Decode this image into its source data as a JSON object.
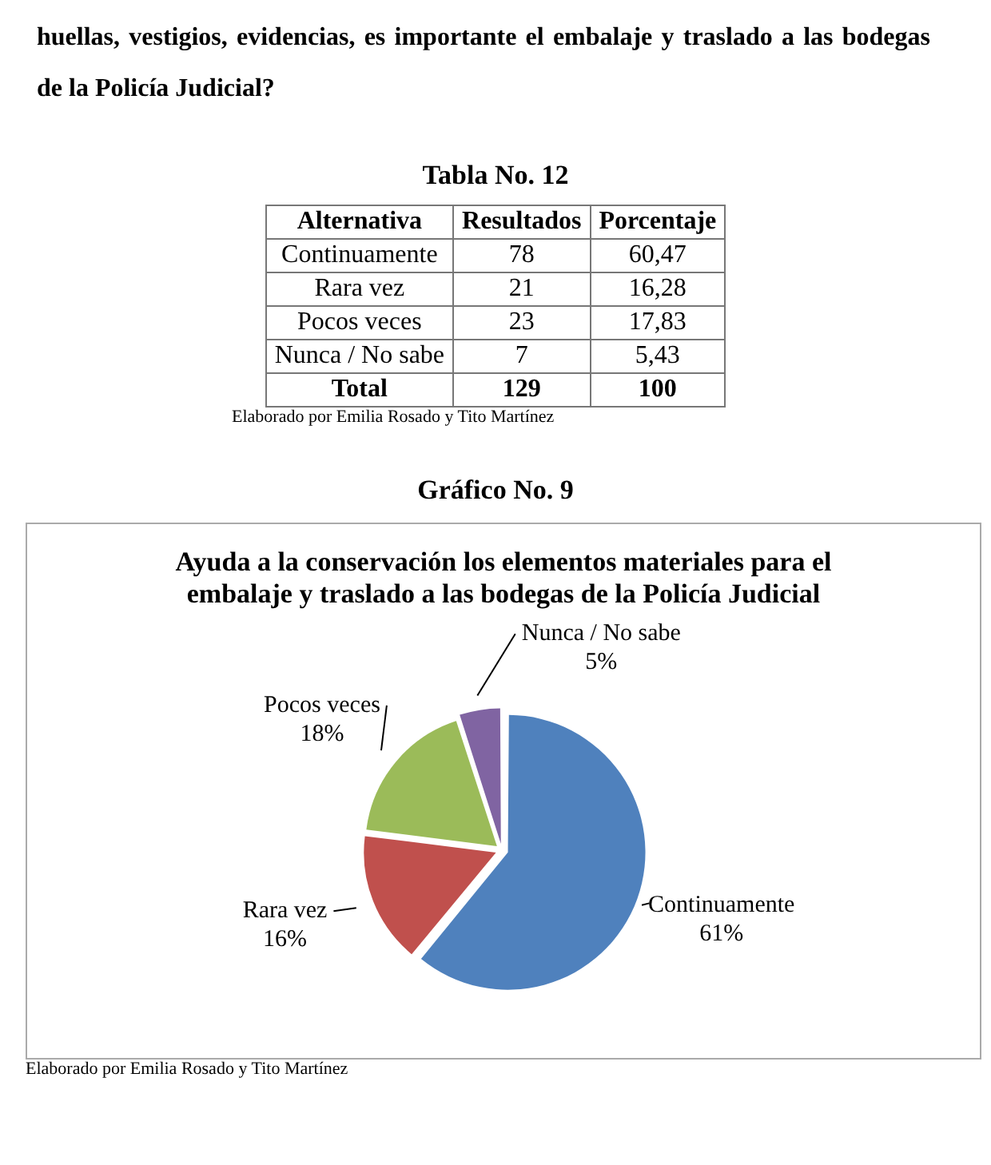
{
  "chart_data": [
    {
      "type": "other",
      "title": "Tabla No. 12",
      "categories": [
        "Alternativa",
        "Resultados",
        "Porcentaje"
      ],
      "cell_labels": [
        [
          "Continuamente",
          "78",
          "60,47"
        ],
        [
          "Rara vez",
          "21",
          "16,28"
        ],
        [
          "Pocos veces",
          "23",
          "17,83"
        ],
        [
          "Nunca / No sabe",
          "7",
          "5,43"
        ],
        [
          "Total",
          "129",
          "100"
        ]
      ],
      "annotations": [
        "huellas, vestigios, evidencias, es importante el embalaje y traslado a las bodegas de la Policía Judicial?",
        "Elaborado por Emilia Rosado y Tito Martínez"
      ]
    },
    {
      "type": "pie",
      "title": "Ayuda a la conservación los elementos materiales para el embalaje y traslado a las bodegas de la Policía Judicial",
      "categories": [
        "Continuamente",
        "Rara vez",
        "Pocos veces",
        "Nunca / No sabe"
      ],
      "values": [
        61,
        16,
        18,
        5
      ],
      "colors": [
        "#4f81bd",
        "#c0504d",
        "#9bbb59",
        "#8064a2"
      ],
      "value_labels": [
        "61%",
        "16%",
        "18%",
        "5%"
      ],
      "annotations": [
        "Gráfico No. 9",
        "Elaborado por Emilia Rosado y Tito Martínez"
      ]
    }
  ]
}
